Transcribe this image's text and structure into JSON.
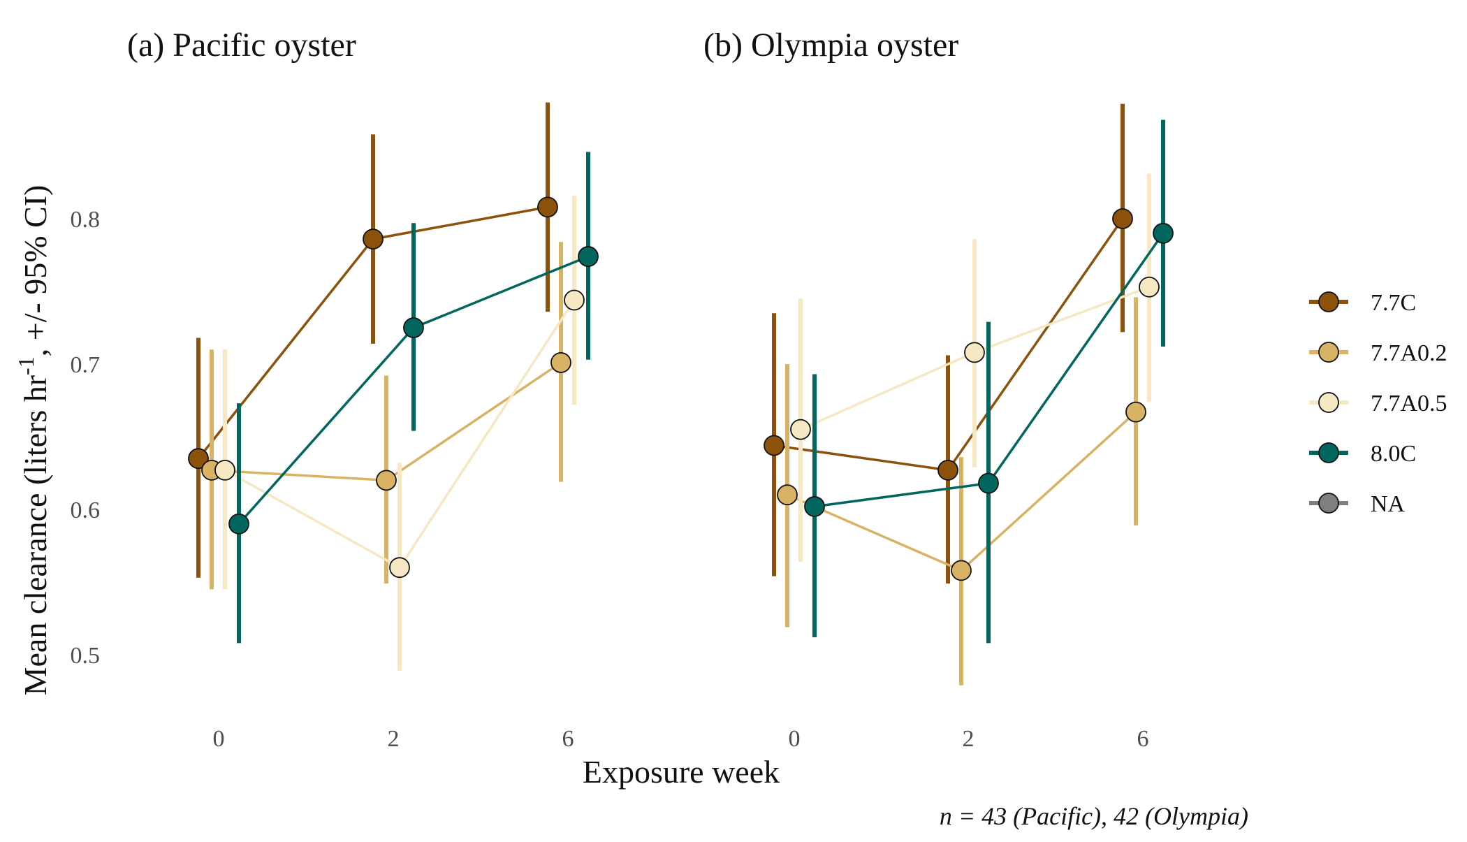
{
  "chart_data": {
    "type": "line",
    "ylabel": "Mean clearance (liters hr",
    "ylabel_superscript": "-1",
    "ylabel_suffix": ", +/- 95% CI)",
    "xlabel": "Exposure week",
    "note": "n = 43 (Pacific), 42 (Olympia)",
    "x_categories": [
      "0",
      "2",
      "6"
    ],
    "ylim": [
      0.45,
      0.88
    ],
    "yticks": [
      0.5,
      0.6,
      0.7,
      0.8
    ],
    "ytick_labels": [
      "0.5",
      "0.6",
      "0.7",
      "0.8"
    ],
    "grid": false,
    "legend_position": "right",
    "legend": [
      {
        "name": "7.7C",
        "color": "#8c510a"
      },
      {
        "name": "7.7A0.2",
        "color": "#d8b365"
      },
      {
        "name": "7.7A0.5",
        "color": "#f6e8c3"
      },
      {
        "name": "8.0C",
        "color": "#01665e"
      },
      {
        "name": "NA",
        "color": "#7f7f7f"
      }
    ],
    "panels": [
      {
        "title": "(a) Pacific oyster",
        "series": [
          {
            "name": "7.7C",
            "color": "#8c510a",
            "mean": [
              0.635,
              0.786,
              0.808
            ],
            "lower": [
              0.553,
              0.714,
              0.736
            ],
            "upper": [
              0.718,
              0.858,
              0.88
            ]
          },
          {
            "name": "7.7A0.2",
            "color": "#d8b365",
            "mean": [
              0.627,
              0.62,
              0.701
            ],
            "lower": [
              0.545,
              0.549,
              0.619
            ],
            "upper": [
              0.71,
              0.692,
              0.784
            ]
          },
          {
            "name": "7.7A0.5",
            "color": "#f6e8c3",
            "mean": [
              0.627,
              0.56,
              0.744
            ],
            "lower": [
              0.545,
              0.489,
              0.672
            ],
            "upper": [
              0.71,
              0.632,
              0.816
            ]
          },
          {
            "name": "8.0C",
            "color": "#01665e",
            "mean": [
              0.59,
              0.725,
              0.774
            ],
            "lower": [
              0.508,
              0.654,
              0.703
            ],
            "upper": [
              0.673,
              0.797,
              0.846
            ]
          }
        ]
      },
      {
        "title": "(b) Olympia oyster",
        "series": [
          {
            "name": "7.7C",
            "color": "#8c510a",
            "mean": [
              0.644,
              0.627,
              0.8
            ],
            "lower": [
              0.554,
              0.549,
              0.722
            ],
            "upper": [
              0.735,
              0.706,
              0.879
            ]
          },
          {
            "name": "7.7A0.2",
            "color": "#d8b365",
            "mean": [
              0.61,
              0.558,
              0.667
            ],
            "lower": [
              0.519,
              0.479,
              0.589
            ],
            "upper": [
              0.7,
              0.636,
              0.746
            ]
          },
          {
            "name": "7.7A0.5",
            "color": "#f6e8c3",
            "mean": [
              0.655,
              0.708,
              0.753
            ],
            "lower": [
              0.564,
              0.629,
              0.674
            ],
            "upper": [
              0.745,
              0.786,
              0.831
            ]
          },
          {
            "name": "8.0C",
            "color": "#01665e",
            "mean": [
              0.602,
              0.618,
              0.79
            ],
            "lower": [
              0.512,
              0.508,
              0.712
            ],
            "upper": [
              0.693,
              0.729,
              0.868
            ]
          }
        ]
      }
    ]
  }
}
